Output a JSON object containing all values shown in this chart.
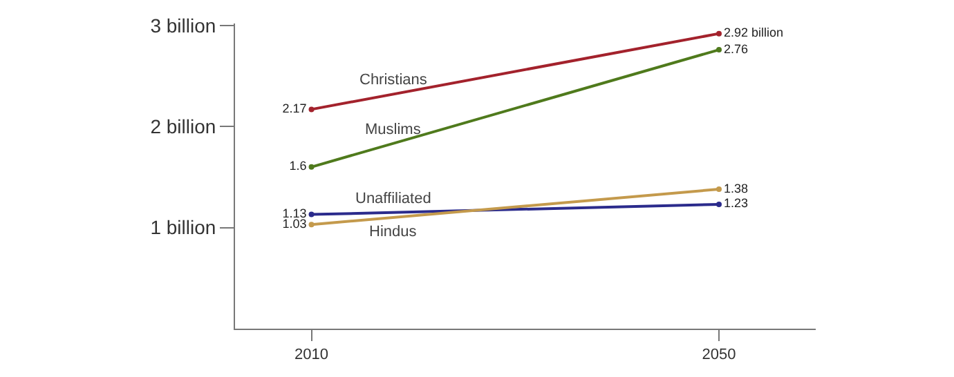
{
  "chart_data": {
    "type": "line",
    "x": [
      2010,
      2050
    ],
    "series": [
      {
        "name": "Christians",
        "color": "#a3222c",
        "values": [
          2.17,
          2.92
        ],
        "value_labels": [
          "2.17",
          "2.92 billion"
        ]
      },
      {
        "name": "Muslims",
        "color": "#4f7a1c",
        "values": [
          1.6,
          2.76
        ],
        "value_labels": [
          "1.6",
          "2.76"
        ]
      },
      {
        "name": "Unaffiliated",
        "color": "#2b2b8c",
        "values": [
          1.13,
          1.23
        ],
        "value_labels": [
          "1.13",
          "1.23"
        ]
      },
      {
        "name": "Hindus",
        "color": "#c49a4c",
        "values": [
          1.03,
          1.38
        ],
        "value_labels": [
          "1.03",
          "1.38"
        ]
      }
    ],
    "xlim": [
      2002.5,
      2059.5
    ],
    "xticks": [
      2010,
      2050
    ],
    "ylim": [
      0,
      3.02
    ],
    "yticks": [
      {
        "value": 1,
        "label": "1 billion"
      },
      {
        "value": 2,
        "label": "2 billion"
      },
      {
        "value": 3,
        "label": "3 billion"
      }
    ],
    "legend": false,
    "marker": "circle",
    "line_style": "solid"
  }
}
